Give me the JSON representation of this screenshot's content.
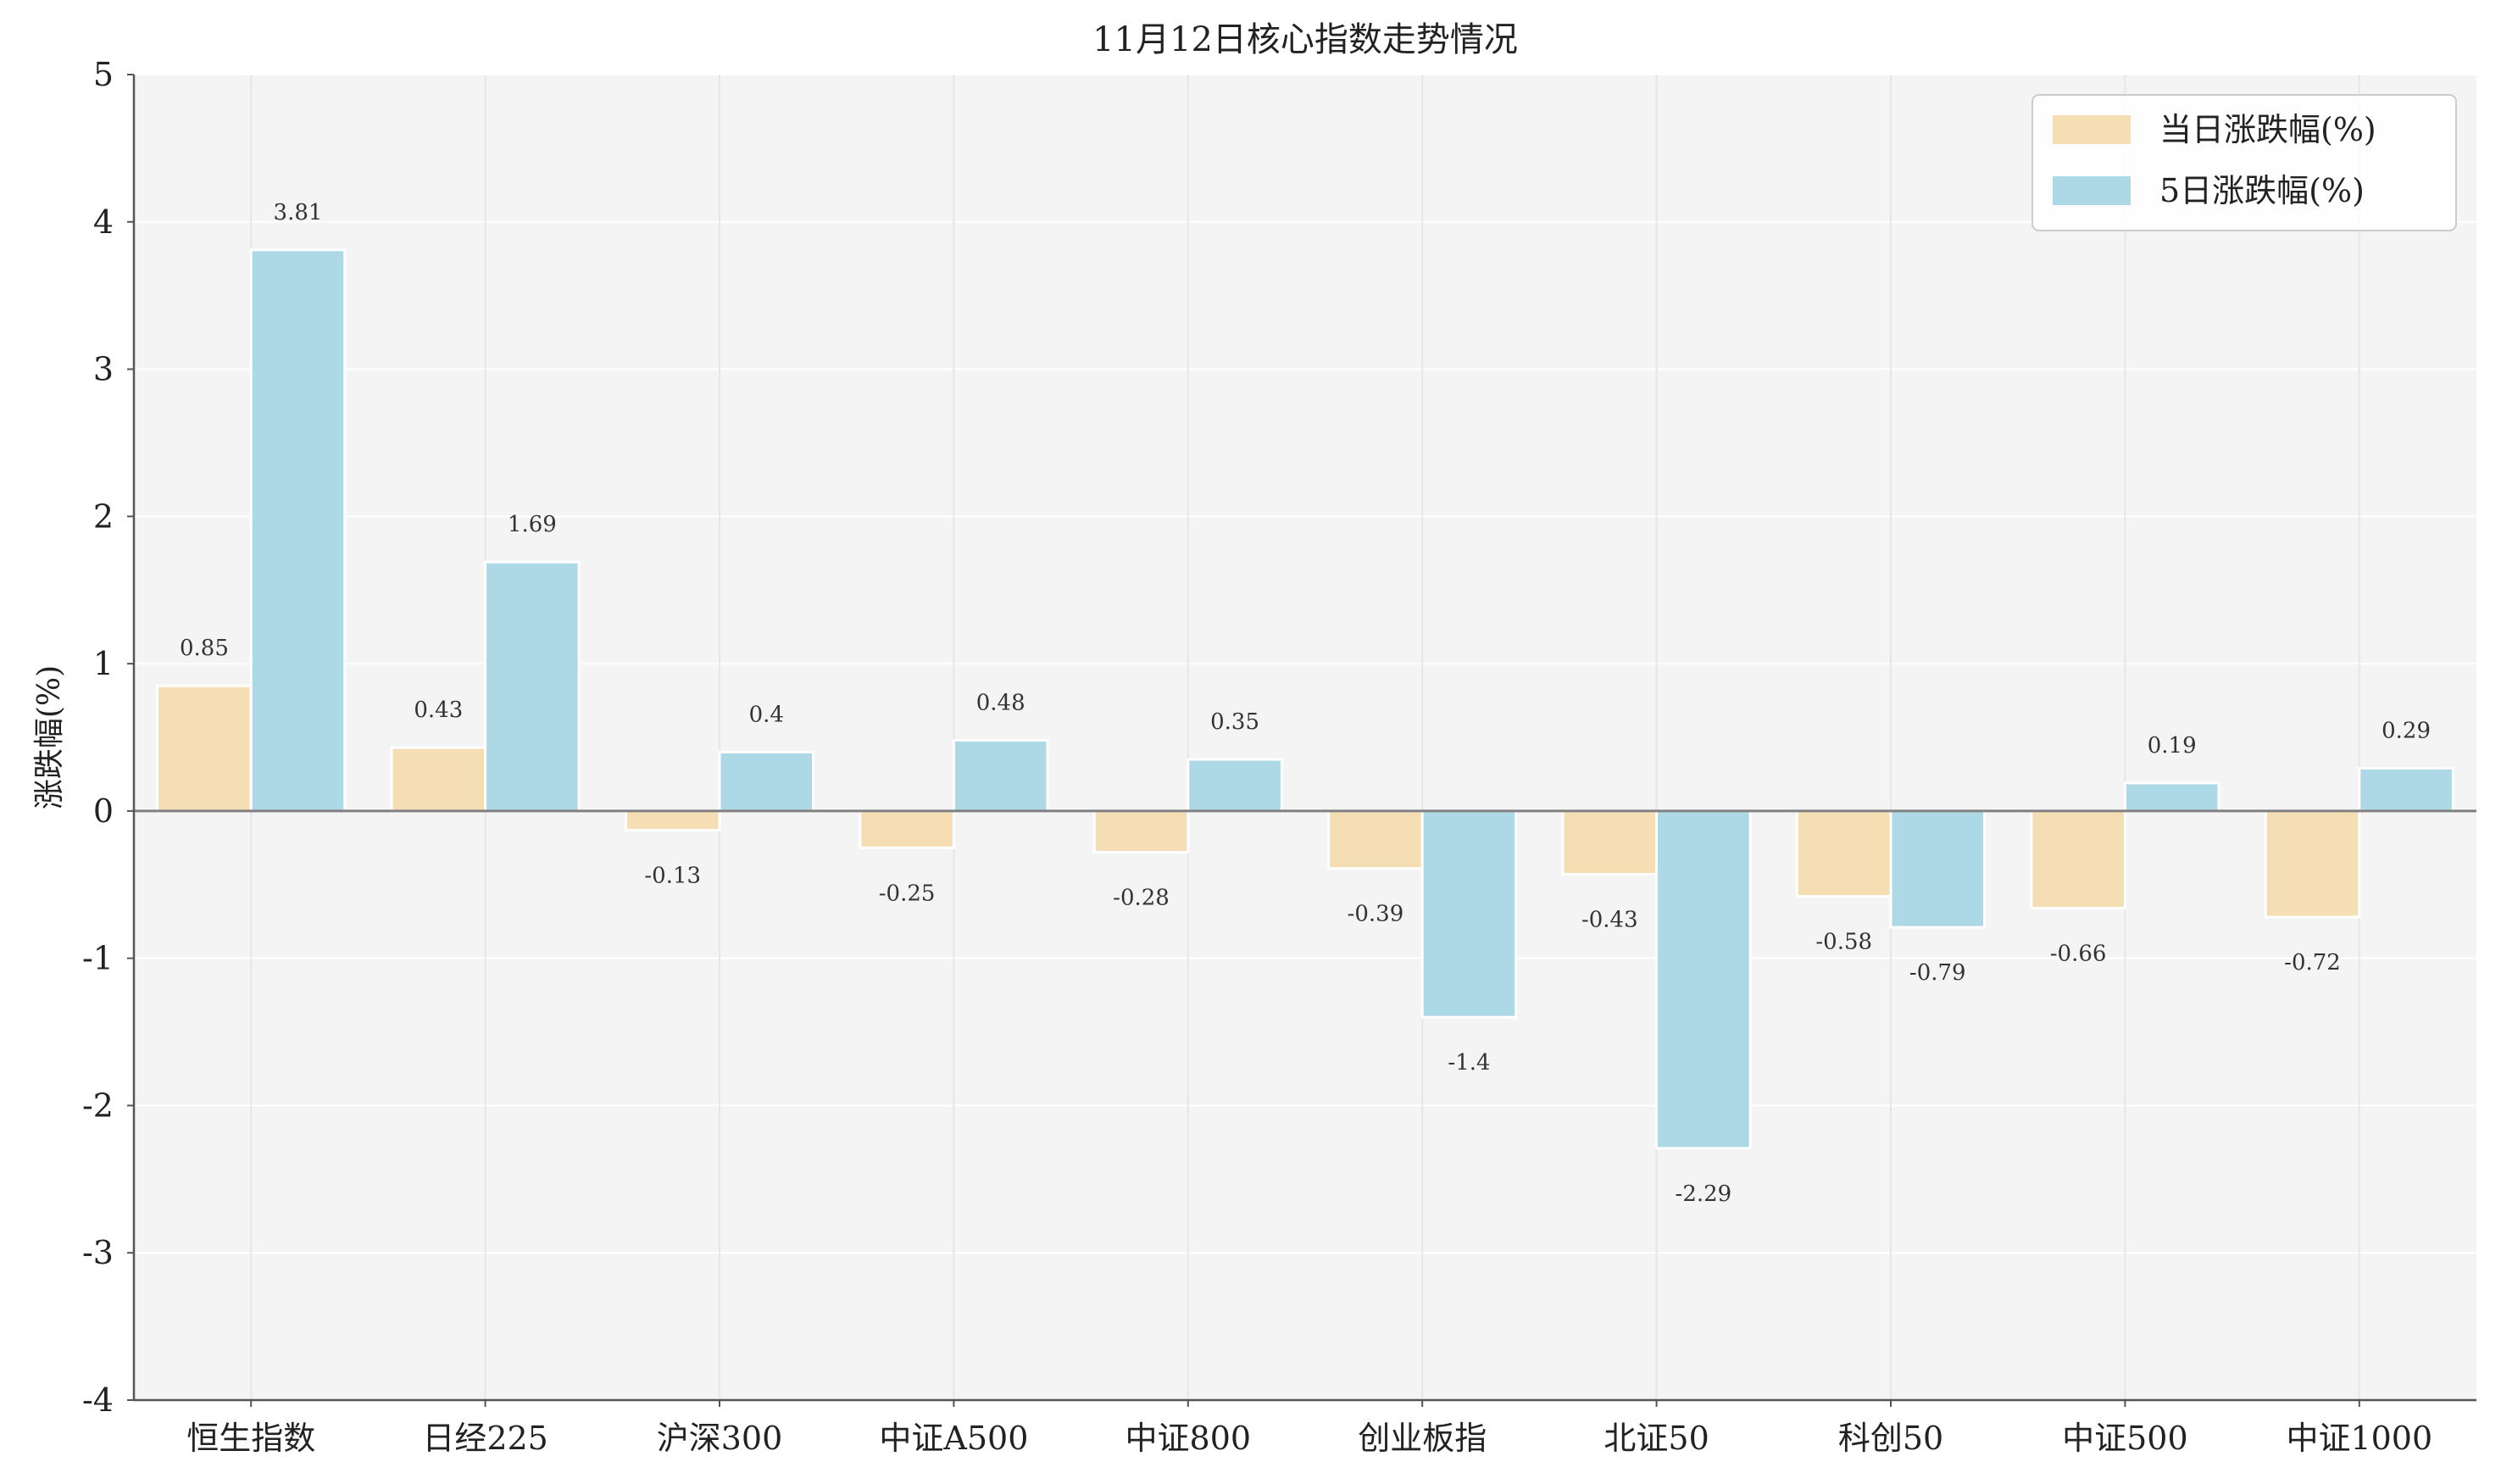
{
  "chart_data": {
    "type": "bar",
    "title": "11月12日核心指数走势情况",
    "xlabel": "",
    "ylabel": "涨跌幅(%)",
    "ylim": [
      -4,
      5
    ],
    "yticks": [
      -4,
      -3,
      -2,
      -1,
      0,
      1,
      2,
      3,
      4,
      5
    ],
    "grid": true,
    "legend_position": "top-right",
    "categories": [
      "恒生指数",
      "日经225",
      "沪深300",
      "中证A500",
      "中证800",
      "创业板指",
      "北证50",
      "科创50",
      "中证500",
      "中证1000"
    ],
    "series": [
      {
        "name": "当日涨跌幅(%)",
        "color": "#f5deb3",
        "values": [
          0.85,
          0.43,
          -0.13,
          -0.25,
          -0.28,
          -0.39,
          -0.43,
          -0.58,
          -0.66,
          -0.72
        ]
      },
      {
        "name": "5日涨跌幅(%)",
        "color": "#add8e6",
        "values": [
          3.81,
          1.69,
          0.4,
          0.48,
          0.35,
          -1.4,
          -2.29,
          -0.79,
          0.19,
          0.29
        ]
      }
    ]
  },
  "colors": {
    "plot_background": "#f4f4f4",
    "grid": "#ffffff",
    "vgrid": "#e6e6e6",
    "axis": "#555555",
    "zero_line": "#808080"
  }
}
